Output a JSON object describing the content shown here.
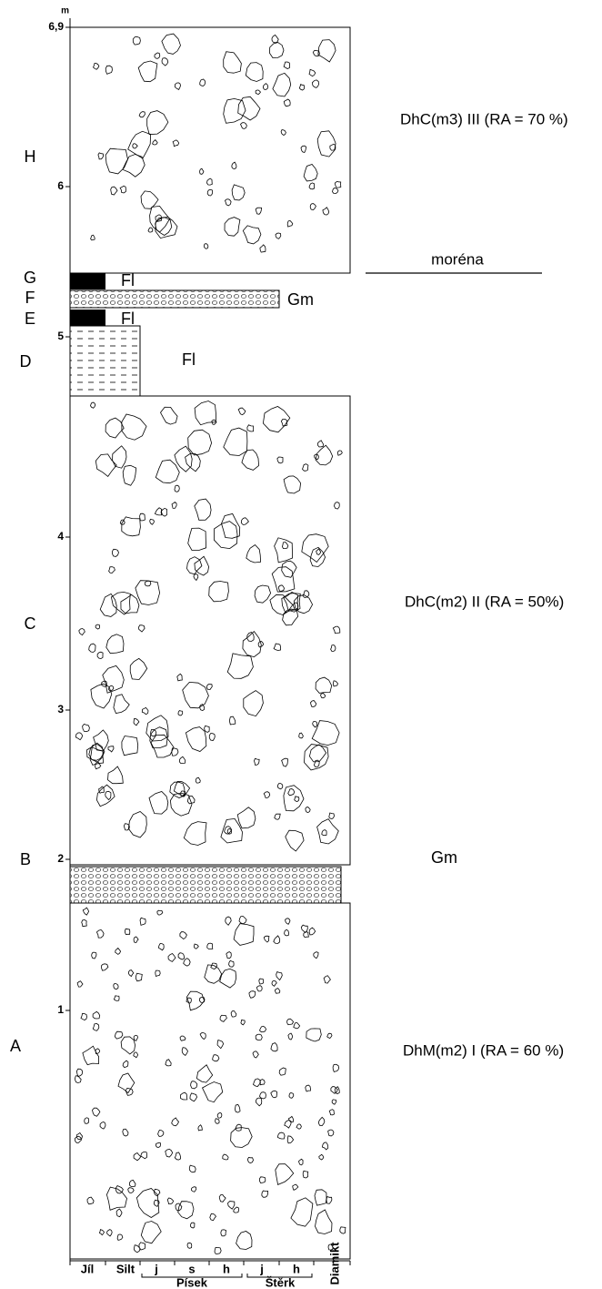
{
  "axis": {
    "unit": "m",
    "ticks": [
      "6,9",
      "6",
      "5",
      "4",
      "3",
      "2",
      "1"
    ]
  },
  "units": [
    {
      "letter": "H",
      "interpretation": "DhC(m3) III (RA = 70 %)"
    },
    {
      "letter": "G",
      "facies": "Fl"
    },
    {
      "letter": "F",
      "facies": "Gm"
    },
    {
      "letter": "E",
      "facies": "Fl"
    },
    {
      "letter": "D",
      "facies": "Fl"
    },
    {
      "letter": "C",
      "interpretation": "DhC(m2) II (RA = 50%)"
    },
    {
      "letter": "B",
      "facies": "Gm"
    },
    {
      "letter": "A",
      "interpretation": "DhM(m2) I (RA = 60 %)"
    }
  ],
  "boundary_label": "moréna",
  "grain_size": {
    "clay": "Jíl",
    "silt": "Silt",
    "sand": {
      "label": "Písek",
      "sub": [
        "j",
        "s",
        "h"
      ]
    },
    "gravel": {
      "label": "Štěrk",
      "sub": [
        "j",
        "h"
      ]
    },
    "diamict": "Diamikt"
  }
}
